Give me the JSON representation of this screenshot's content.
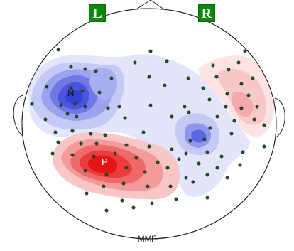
{
  "title": "MMF",
  "hemisphere_labels": {
    "left": "L",
    "right": "R"
  },
  "pole_labels": {
    "negative": "N",
    "positive": "P"
  },
  "colors": {
    "badge_bg": "#0a8a0a",
    "outline": "#222222",
    "sensor": "#1f4a22",
    "negative_strong": "#3344dd",
    "negative_weak": "#c8ccf6",
    "positive_strong": "#ee1111",
    "positive_weak": "#f8cccc"
  }
}
